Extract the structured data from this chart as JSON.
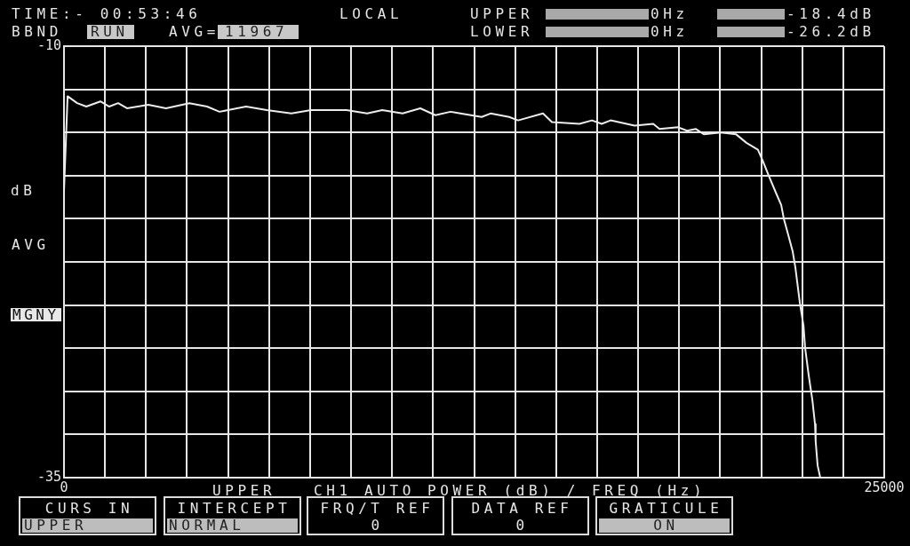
{
  "chart_data": {
    "type": "line",
    "xlabel": "CH1 AUTO POWER (dB) / FREQ (Hz)",
    "ylabel": "dB",
    "x": [
      0,
      110,
      400,
      680,
      1110,
      1380,
      1650,
      1920,
      2570,
      3110,
      3820,
      4360,
      4740,
      5550,
      6180,
      6930,
      7530,
      8610,
      9240,
      9700,
      10320,
      10860,
      11320,
      11780,
      12080,
      12730,
      13000,
      13570,
      13840,
      14600,
      14870,
      15710,
      16090,
      16390,
      16660,
      17390,
      17960,
      18150,
      18720,
      18990,
      19260,
      19500,
      20020,
      20480,
      20800,
      21150,
      21290,
      21480,
      21700,
      21860,
      21940,
      22070,
      22210,
      22290,
      22370,
      22430,
      22540,
      22590,
      22700,
      22810,
      22890,
      22910,
      22970,
      23050,
      25000
    ],
    "values": [
      -18.4,
      -12.9,
      -13.3,
      -13.5,
      -13.2,
      -13.5,
      -13.3,
      -13.6,
      -13.4,
      -13.6,
      -13.3,
      -13.5,
      -13.8,
      -13.5,
      -13.7,
      -13.9,
      -13.7,
      -13.7,
      -13.9,
      -13.7,
      -13.9,
      -13.6,
      -14.0,
      -13.8,
      -13.9,
      -14.1,
      -13.9,
      -14.1,
      -14.3,
      -13.9,
      -14.4,
      -14.5,
      -14.3,
      -14.5,
      -14.3,
      -14.6,
      -14.5,
      -14.8,
      -14.7,
      -14.9,
      -14.8,
      -15.1,
      -15.0,
      -15.1,
      -15.6,
      -16.0,
      -16.6,
      -17.5,
      -18.5,
      -19.2,
      -20.0,
      -20.9,
      -21.9,
      -22.8,
      -24.0,
      -24.9,
      -26.2,
      -27.5,
      -29.1,
      -30.5,
      -31.9,
      -32.9,
      -34.3,
      -35,
      -35
    ],
    "color": "#ececec",
    "xlim": [
      0,
      25000
    ],
    "xticks": [
      0,
      {
        "value": 1250,
        "label": null
      },
      {
        "value": 2500,
        "label": null
      },
      {
        "value": 3750,
        "label": null
      },
      {
        "value": 5000,
        "label": null
      },
      {
        "value": 6250,
        "label": null
      },
      {
        "value": 7500,
        "label": null
      },
      {
        "value": 8750,
        "label": null
      },
      {
        "value": 10000,
        "label": null
      },
      {
        "value": 11250,
        "label": null
      },
      {
        "value": 12500,
        "label": null
      },
      {
        "value": 13750,
        "label": null
      },
      {
        "value": 15000,
        "label": null
      },
      {
        "value": 16250,
        "label": null
      },
      {
        "value": 17500,
        "label": null
      },
      {
        "value": 18750,
        "label": null
      },
      {
        "value": 20000,
        "label": null
      },
      {
        "value": 21250,
        "label": null
      },
      {
        "value": 22500,
        "label": null
      },
      {
        "value": 23750,
        "label": null
      },
      25000
    ],
    "ylim": [
      -35,
      -10
    ],
    "yticks": [
      -35,
      {
        "value": -32.5,
        "label": null
      },
      {
        "value": -30,
        "label": null
      },
      {
        "value": -27.5,
        "label": null
      },
      {
        "value": -25,
        "label": null
      },
      {
        "value": -22.5,
        "label": null
      },
      {
        "value": -20,
        "label": null
      },
      {
        "value": -17.5,
        "label": null
      },
      {
        "value": -15,
        "label": null
      },
      {
        "value": -12.5,
        "label": null
      },
      -10
    ],
    "grid": true,
    "marker": "none",
    "line_style": "solid",
    "annotations": [
      "TIME:- 00:53:46",
      "LOCAL",
      "UPPER",
      "0Hz",
      "-18.4dB",
      "BBND",
      "RUN",
      "AVG=",
      "11967",
      "LOWER",
      "0Hz",
      "-26.2dB",
      "AVG",
      "MGNY",
      "UPPER",
      "CURS IN",
      "UPPER",
      "INTERCEPT",
      "NORMAL",
      "FRQ/T REF",
      "0",
      "DATA REF",
      "0",
      "GRATICULE",
      "ON"
    ]
  }
}
